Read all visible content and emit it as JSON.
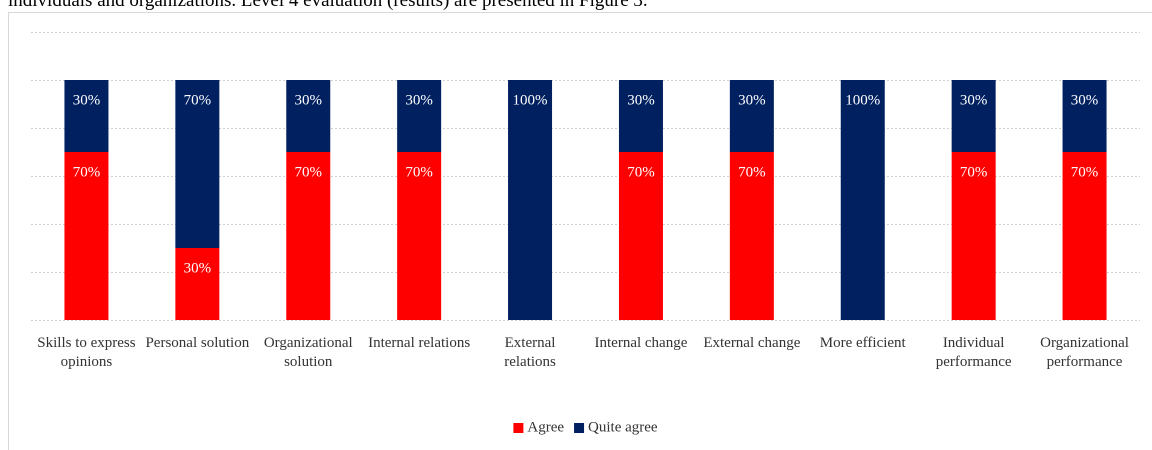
{
  "document_text": "individuals and organizations. Level 4 evaluation (results) are presented in Figure 3.",
  "chart_data": {
    "type": "bar",
    "stacked": true,
    "categories": [
      "Skills to express opinions",
      "Personal solution",
      "Organizational solution",
      "Internal relations",
      "External relations",
      "Internal change",
      "External change",
      "More efficient",
      "Individual performance",
      "Organizational performance"
    ],
    "series": [
      {
        "name": "Agree",
        "color": "#ff0000",
        "values": [
          70,
          30,
          70,
          70,
          0,
          70,
          70,
          0,
          70,
          70
        ],
        "value_labels": [
          "70%",
          "30%",
          "70%",
          "70%",
          null,
          "70%",
          "70%",
          null,
          "70%",
          "70%"
        ]
      },
      {
        "name": "Quite agree",
        "color": "#002060",
        "values": [
          30,
          70,
          30,
          30,
          100,
          30,
          30,
          100,
          30,
          30
        ],
        "value_labels": [
          "30%",
          "70%",
          "30%",
          "30%",
          "100%",
          "30%",
          "30%",
          "100%",
          "30%",
          "30%"
        ]
      }
    ],
    "ylim": [
      0,
      120
    ],
    "yticks": [
      0,
      20,
      40,
      60,
      80,
      100,
      120
    ],
    "grid": true,
    "legend": "bottom"
  }
}
